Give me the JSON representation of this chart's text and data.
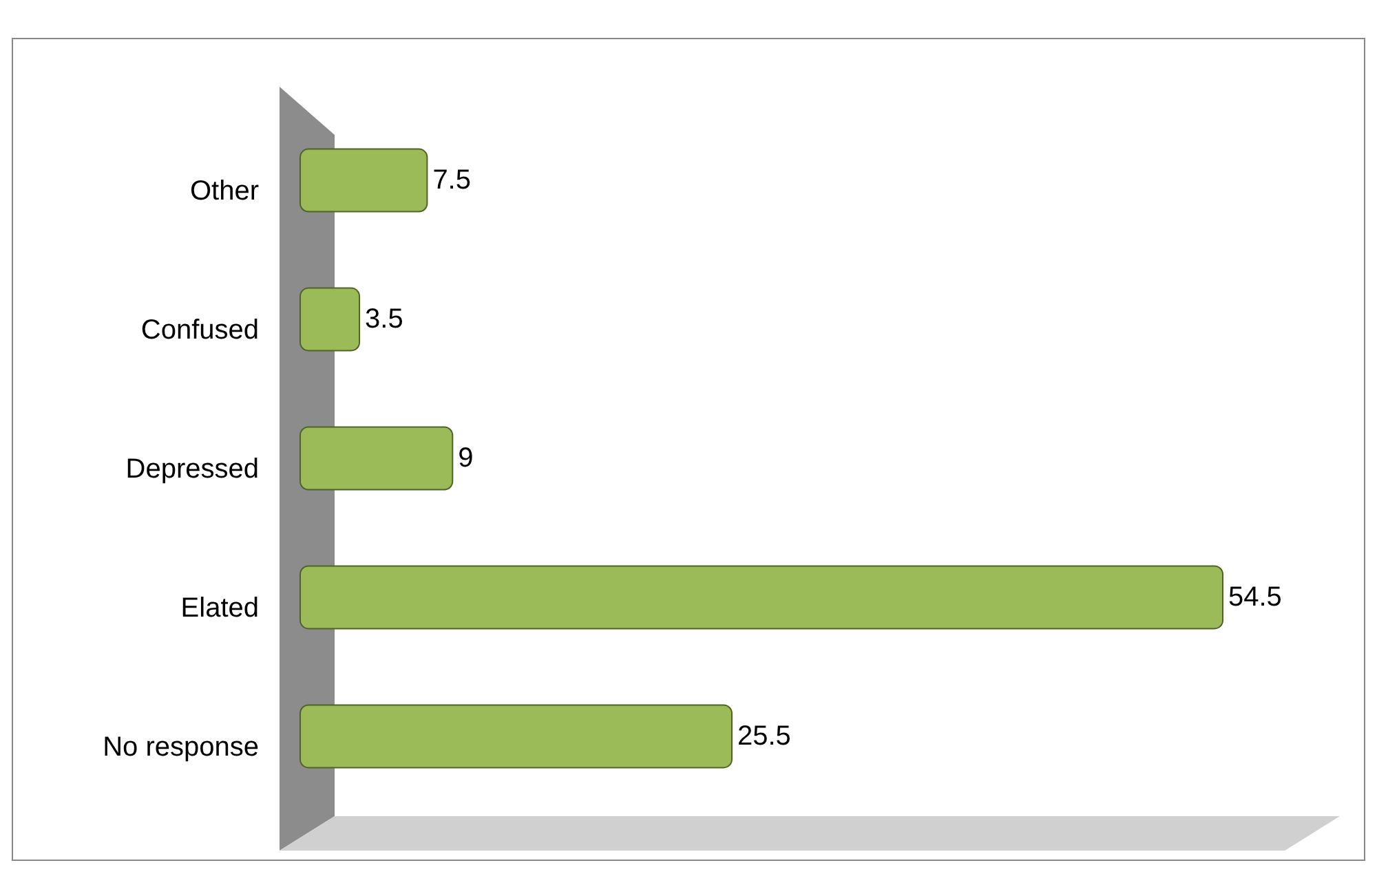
{
  "chart_data": {
    "type": "bar",
    "orientation": "horizontal",
    "categories": [
      "Other",
      "Confused",
      "Depressed",
      "Elated",
      "No response"
    ],
    "values": [
      7.5,
      3.5,
      9,
      54.5,
      25.5
    ],
    "color": "#9bbb59",
    "data_labels": true,
    "grid": false
  }
}
